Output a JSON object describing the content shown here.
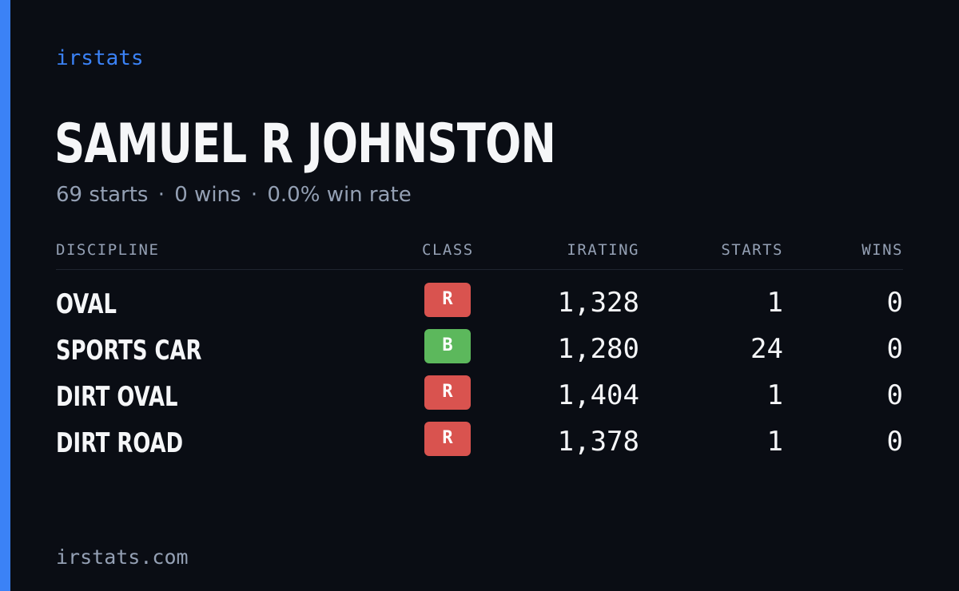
{
  "brand": "irstats",
  "driver": {
    "name": "SAMUEL R JOHNSTON",
    "summary": {
      "starts": "69 starts",
      "wins": "0 wins",
      "win_rate": "0.0% win rate",
      "separator": "·"
    }
  },
  "table": {
    "headers": {
      "discipline": "DISCIPLINE",
      "class": "CLASS",
      "irating": "IRATING",
      "starts": "STARTS",
      "wins": "WINS"
    },
    "rows": [
      {
        "discipline": "OVAL",
        "class": "R",
        "class_color": "#d9534f",
        "irating": "1,328",
        "starts": "1",
        "wins": "0"
      },
      {
        "discipline": "SPORTS CAR",
        "class": "B",
        "class_color": "#5cb85c",
        "irating": "1,280",
        "starts": "24",
        "wins": "0"
      },
      {
        "discipline": "DIRT OVAL",
        "class": "R",
        "class_color": "#d9534f",
        "irating": "1,404",
        "starts": "1",
        "wins": "0"
      },
      {
        "discipline": "DIRT ROAD",
        "class": "R",
        "class_color": "#d9534f",
        "irating": "1,378",
        "starts": "1",
        "wins": "0"
      }
    ]
  },
  "footer": "irstats.com",
  "colors": {
    "accent": "#3b82f6",
    "background": "#0a0d14",
    "text": "#f5f6f8",
    "muted": "#94a0b4"
  }
}
